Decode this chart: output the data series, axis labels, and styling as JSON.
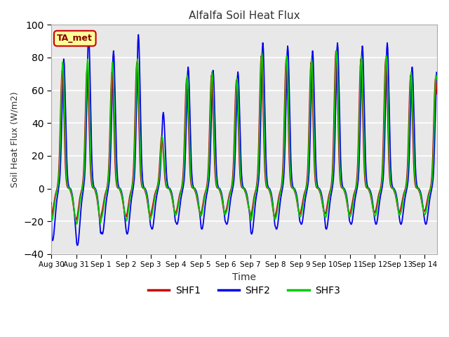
{
  "title": "Alfalfa Soil Heat Flux",
  "xlabel": "Time",
  "ylabel": "Soil Heat Flux (W/m2)",
  "ylim": [
    -40,
    100
  ],
  "xlim_start": 0,
  "xlim_end": 15.5,
  "background_color": "#ffffff",
  "plot_bg_color": "#e8e8e8",
  "grid_color": "#ffffff",
  "shf1_color": "#cc0000",
  "shf2_color": "#0000ee",
  "shf3_color": "#00cc00",
  "annotation_text": "TA_met",
  "annotation_bg": "#ffff99",
  "annotation_border": "#cc0000",
  "legend_labels": [
    "SHF1",
    "SHF2",
    "SHF3"
  ],
  "yticks": [
    -40,
    -20,
    0,
    20,
    40,
    60,
    80,
    100
  ],
  "tick_labels": [
    "Aug 30",
    "Aug 31",
    "Sep 1",
    "Sep 2",
    "Sep 3",
    "Sep 4",
    "Sep 5",
    "Sep 6",
    "Sep 7",
    "Sep 8",
    "Sep 9",
    "Sep 10",
    "Sep 11",
    "Sep 12",
    "Sep 13",
    "Sep 14"
  ],
  "tick_positions": [
    0,
    1,
    2,
    3,
    4,
    5,
    6,
    7,
    8,
    9,
    10,
    11,
    12,
    13,
    14,
    15
  ]
}
